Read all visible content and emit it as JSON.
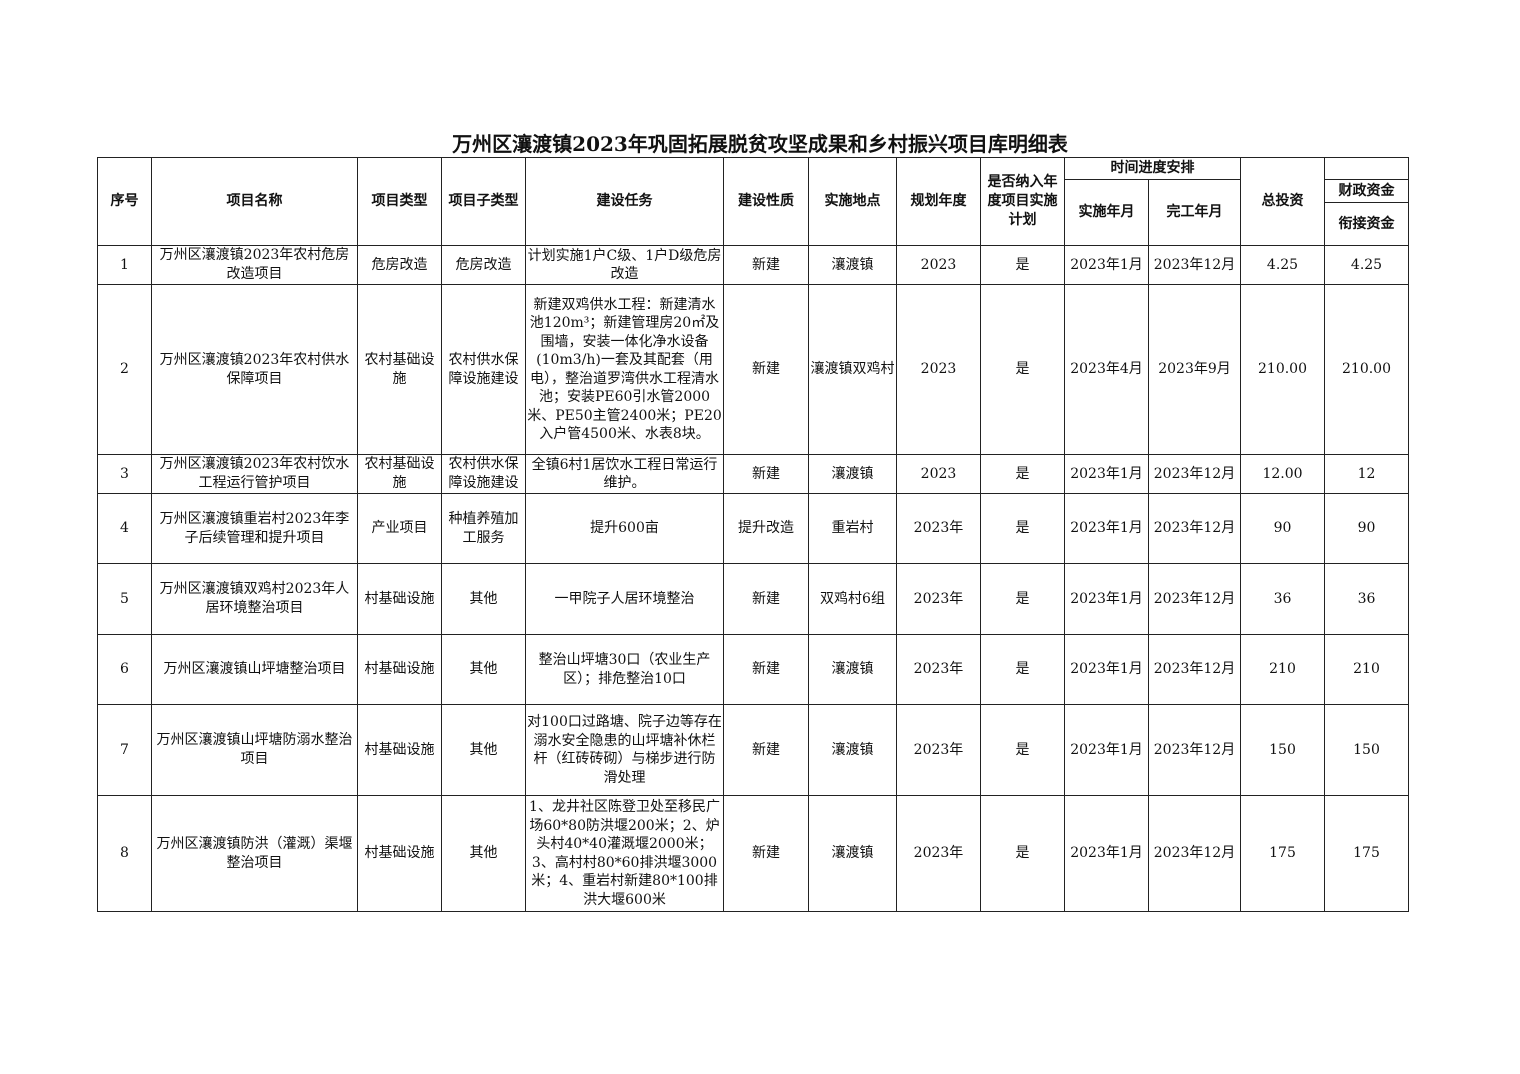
{
  "title": "万州区瀼渡镇2023年巩固拓展脱贫攻坚成果和乡村振兴项目库明细表",
  "headers": {
    "index": "序号",
    "name": "项目名称",
    "type": "项目类型",
    "subtype": "项目子类型",
    "task": "建设任务",
    "nature": "建设性质",
    "location": "实施地点",
    "year": "规划年度",
    "included": "是否纳入年度项目实施计划",
    "schedule": "时间进度安排",
    "start": "实施年月",
    "end": "完工年月",
    "total": "总投资",
    "fiscal": "财政资金",
    "linked": "衔接资金"
  },
  "rows": [
    {
      "index": "1",
      "name": "万州区瀼渡镇2023年农村危房改造项目",
      "type": "危房改造",
      "subtype": "危房改造",
      "task": "计划实施1户C级、1户D级危房改造",
      "nature": "新建",
      "location": "瀼渡镇",
      "year": "2023",
      "included": "是",
      "start": "2023年1月",
      "end": "2023年12月",
      "total": "4.25",
      "linked": "4.25"
    },
    {
      "index": "2",
      "name": "万州区瀼渡镇2023年农村供水保障项目",
      "type": "农村基础设施",
      "subtype": "农村供水保障设施建设",
      "task": "新建双鸡供水工程：新建清水池120m³；新建管理房20㎡及围墙，安装一体化净水设备(10m3/h)一套及其配套（用电），整治道罗湾供水工程清水池；安装PE60引水管2000米、PE50主管2400米；PE20入户管4500米、水表8块。",
      "nature": "新建",
      "location": "瀼渡镇双鸡村",
      "year": "2023",
      "included": "是",
      "start": "2023年4月",
      "end": "2023年9月",
      "total": "210.00",
      "linked": "210.00"
    },
    {
      "index": "3",
      "name": "万州区瀼渡镇2023年农村饮水工程运行管护项目",
      "type": "农村基础设施",
      "subtype": "农村供水保障设施建设",
      "task": "全镇6村1居饮水工程日常运行维护。",
      "nature": "新建",
      "location": "瀼渡镇",
      "year": "2023",
      "included": "是",
      "start": "2023年1月",
      "end": "2023年12月",
      "total": "12.00",
      "linked": "12"
    },
    {
      "index": "4",
      "name": "万州区瀼渡镇重岩村2023年李子后续管理和提升项目",
      "type": "产业项目",
      "subtype": "种植养殖加工服务",
      "task": "提升600亩",
      "nature": "提升改造",
      "location": "重岩村",
      "year": "2023年",
      "included": "是",
      "start": "2023年1月",
      "end": "2023年12月",
      "total": "90",
      "linked": "90"
    },
    {
      "index": "5",
      "name": "万州区瀼渡镇双鸡村2023年人居环境整治项目",
      "type": "村基础设施",
      "subtype": "其他",
      "task": "一甲院子人居环境整治",
      "nature": "新建",
      "location": "双鸡村6组",
      "year": "2023年",
      "included": "是",
      "start": "2023年1月",
      "end": "2023年12月",
      "total": "36",
      "linked": "36"
    },
    {
      "index": "6",
      "name": "万州区瀼渡镇山坪塘整治项目",
      "type": "村基础设施",
      "subtype": "其他",
      "task": "整治山坪塘30口（农业生产区）；排危整治10口",
      "nature": "新建",
      "location": "瀼渡镇",
      "year": "2023年",
      "included": "是",
      "start": "2023年1月",
      "end": "2023年12月",
      "total": "210",
      "linked": "210"
    },
    {
      "index": "7",
      "name": "万州区瀼渡镇山坪塘防溺水整治项目",
      "type": "村基础设施",
      "subtype": "其他",
      "task": "对100口过路塘、院子边等存在溺水安全隐患的山坪塘补休栏杆（红砖砖砌）与梯步进行防滑处理",
      "nature": "新建",
      "location": "瀼渡镇",
      "year": "2023年",
      "included": "是",
      "start": "2023年1月",
      "end": "2023年12月",
      "total": "150",
      "linked": "150"
    },
    {
      "index": "8",
      "name": "万州区瀼渡镇防洪（灌溉）渠堰整治项目",
      "type": "村基础设施",
      "subtype": "其他",
      "task": "1、龙井社区陈登卫处至移民广场60*80防洪堰200米；2、炉头村40*40灌溉堰2000米；3、高村村80*60排洪堰3000米；4、重岩村新建80*100排洪大堰600米",
      "nature": "新建",
      "location": "瀼渡镇",
      "year": "2023年",
      "included": "是",
      "start": "2023年1月",
      "end": "2023年12月",
      "total": "175",
      "linked": "175"
    }
  ]
}
